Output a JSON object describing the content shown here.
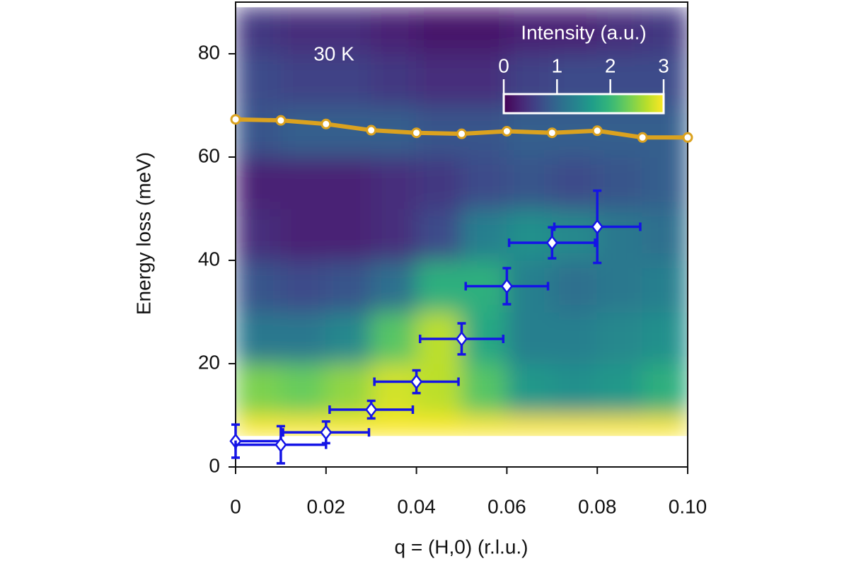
{
  "chart_data": {
    "type": "heatmap-scatter",
    "annotation": "30 K",
    "x_label": "q = (H,0) (r.l.u.)",
    "y_label": "Energy loss (meV)",
    "xlim": [
      0,
      0.1
    ],
    "ylim": [
      0,
      90
    ],
    "xticks": [
      0,
      0.02,
      0.04,
      0.06,
      0.08,
      {
        "value": 0.1,
        "label": "0.10"
      }
    ],
    "yticks": [
      0,
      20,
      40,
      60,
      80
    ],
    "xbins": [
      0,
      0.01,
      0.02,
      0.03,
      0.04,
      0.05,
      0.06,
      0.07,
      0.08,
      0.09,
      0.1
    ],
    "ybins": [
      6,
      10,
      20,
      30,
      40,
      50,
      60,
      70,
      80,
      89
    ],
    "z": [
      [
        3,
        3,
        3,
        3,
        3,
        3,
        3,
        3,
        3,
        3
      ],
      [
        2.4,
        2.3,
        2.5,
        2.8,
        2.7,
        2.2,
        1.6,
        1.5,
        1.6,
        1.9
      ],
      [
        1.2,
        1.2,
        1.4,
        2.2,
        2.7,
        1.8,
        1.3,
        1.3,
        1.4,
        1.5
      ],
      [
        0.8,
        0.7,
        0.8,
        1.1,
        1.9,
        1.9,
        1.3,
        1.1,
        1.2,
        1.3
      ],
      [
        0.4,
        0.3,
        0.3,
        0.4,
        0.7,
        1.3,
        1.5,
        1.4,
        1.2,
        1.1
      ],
      [
        0.3,
        0.3,
        0.3,
        0.4,
        0.5,
        0.7,
        0.8,
        0.7,
        0.8,
        0.9
      ],
      [
        0.8,
        0.9,
        0.9,
        0.9,
        0.8,
        0.8,
        0.9,
        0.9,
        0.9,
        0.9
      ],
      [
        0.7,
        0.6,
        0.6,
        0.5,
        0.4,
        0.4,
        0.6,
        0.7,
        0.7,
        0.7
      ],
      [
        0.5,
        0.4,
        0.4,
        0.3,
        0.2,
        0.2,
        0.3,
        0.3,
        0.4,
        0.5
      ]
    ],
    "colorbar": {
      "title": "Intensity (a.u.)",
      "lim": [
        0,
        3
      ],
      "ticks": [
        0,
        1,
        2,
        3
      ]
    },
    "series": [
      {
        "marker": "circle",
        "color": "#dba21f",
        "x": [
          0,
          0.01,
          0.02,
          0.03,
          0.04,
          0.05,
          0.06,
          0.07,
          0.08,
          0.09,
          0.1
        ],
        "values": [
          67.3,
          67.1,
          66.4,
          65.2,
          64.7,
          64.5,
          65.0,
          64.7,
          65.1,
          63.8,
          63.8
        ]
      },
      {
        "marker": "diamond",
        "color": "#1414e6",
        "x": [
          0,
          0.01,
          0.02,
          0.03,
          0.04,
          0.05,
          0.06,
          0.07,
          0.08
        ],
        "values": [
          5.0,
          4.3,
          6.7,
          11.1,
          16.5,
          24.8,
          35.0,
          43.4,
          46.5
        ],
        "xerr": [
          0.01,
          0.01,
          0.0095,
          0.0092,
          0.0093,
          0.0092,
          0.0091,
          0.0095,
          0.0095
        ],
        "yerr": [
          3.2,
          3.6,
          2.1,
          1.7,
          2.2,
          3.0,
          3.5,
          3.0,
          7.0
        ]
      }
    ]
  }
}
